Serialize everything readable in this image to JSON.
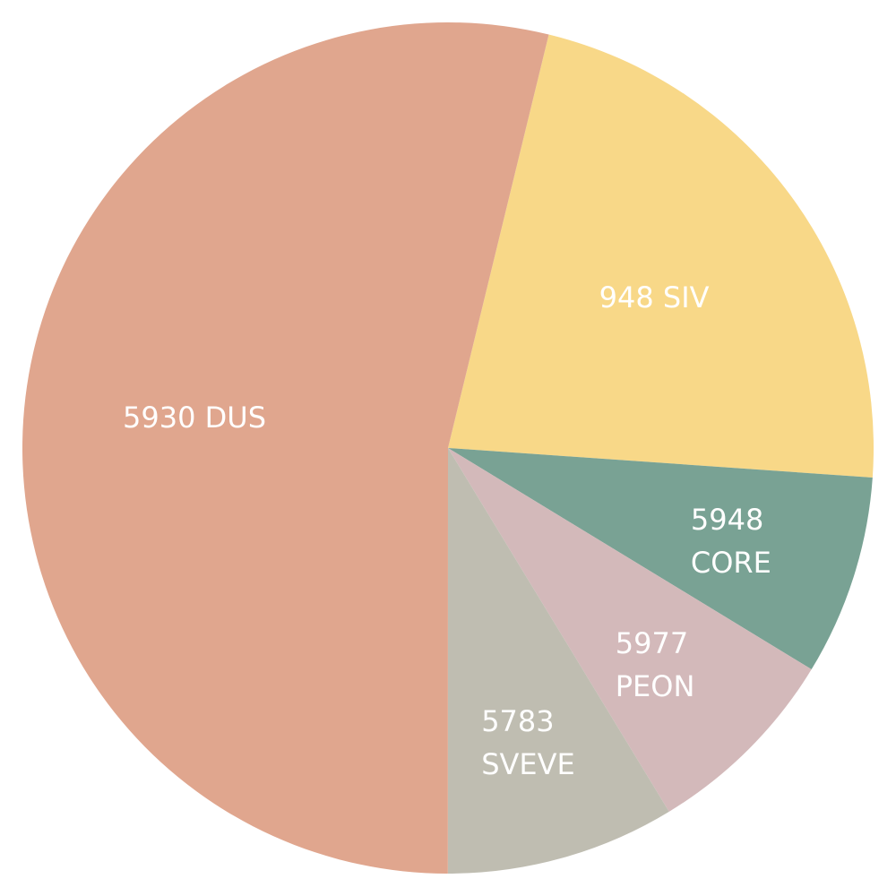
{
  "chart_data": {
    "type": "pie",
    "categories": [
      "948 SIV",
      "5948 CORE",
      "5977 PEON",
      "5783 SVEVE",
      "5930 DUS"
    ],
    "values": [
      22.3,
      7.6,
      7.6,
      8.7,
      53.8
    ],
    "colors": [
      "#f8d888",
      "#79a294",
      "#d3b9ba",
      "#bfbdb1",
      "#e0a68e"
    ]
  }
}
